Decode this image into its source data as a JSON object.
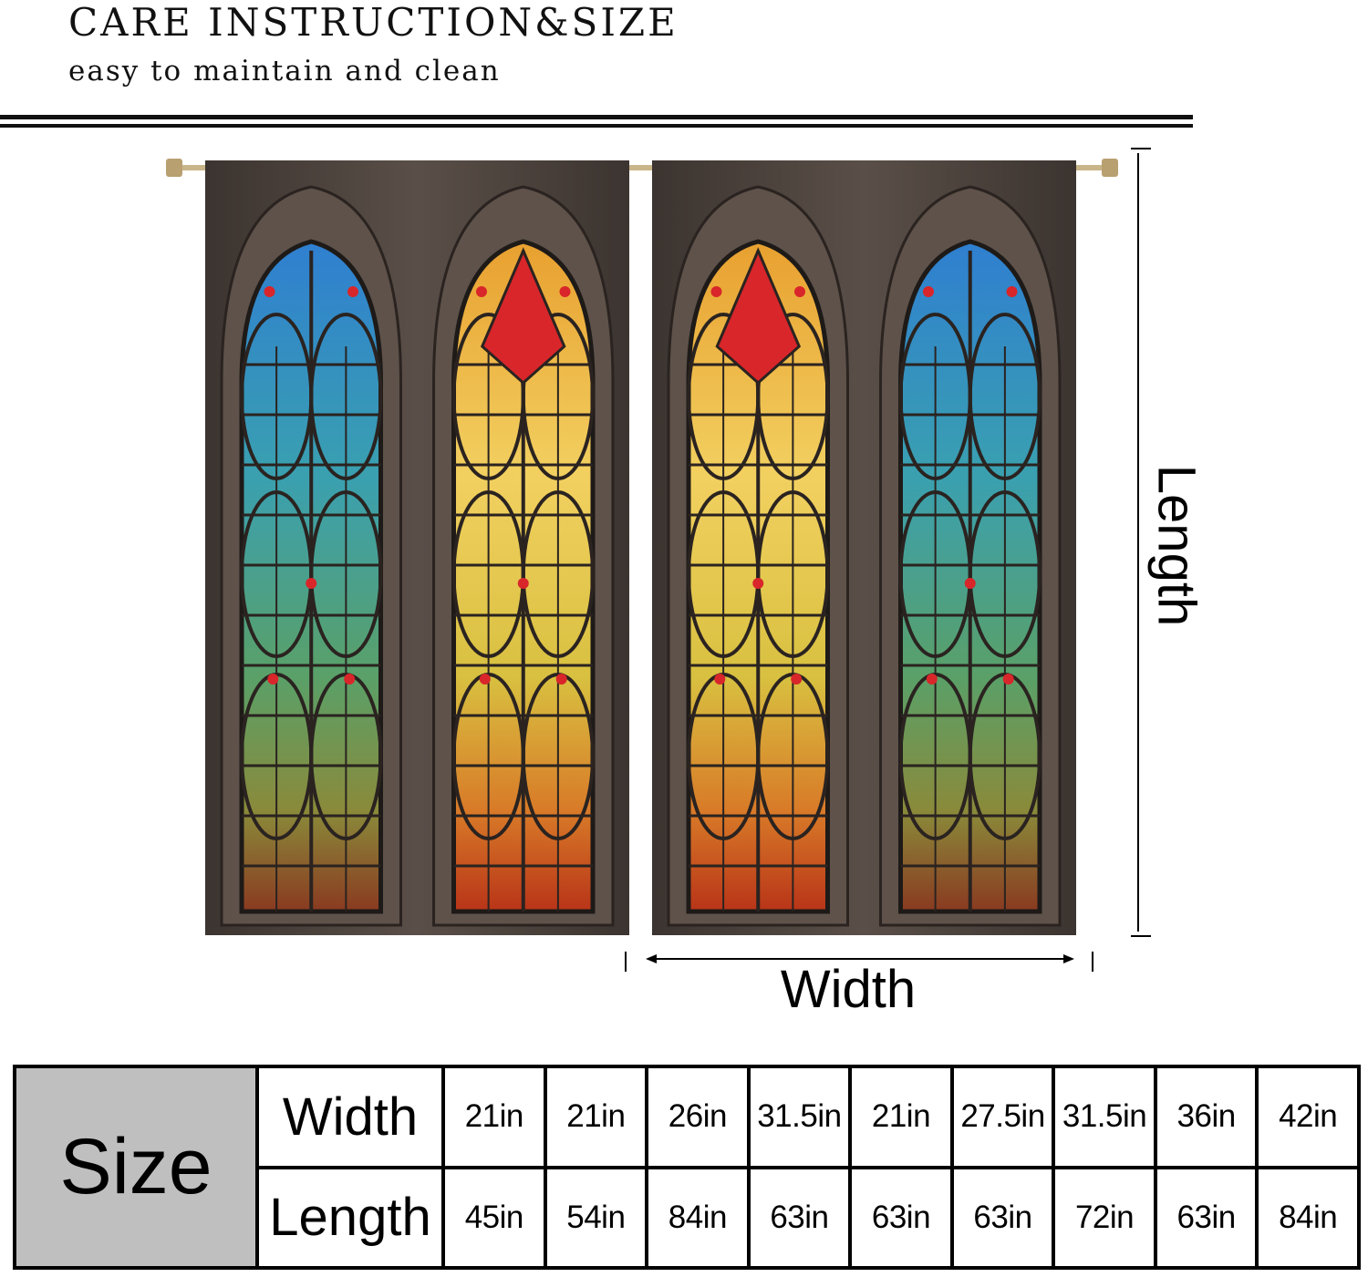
{
  "header": {
    "title": "CARE INSTRUCTION&SIZE",
    "subtitle": "easy to maintain and clean"
  },
  "diagram": {
    "length_label": "Length",
    "width_label": "Width",
    "panel_palettes": [
      [
        "cool",
        "warm"
      ],
      [
        "warm",
        "cool"
      ]
    ],
    "colors": {
      "frame": "#4a403b",
      "cool_top": "#2f7fd0",
      "cool_bottom": "#3f8a5a",
      "warm_top": "#f0c040",
      "warm_bottom": "#c8401c",
      "accent_red": "#d8262a"
    }
  },
  "size_table": {
    "size_label": "Size",
    "width_label": "Width",
    "length_label": "Length",
    "widths": [
      "21in",
      "21in",
      "26in",
      "31.5in",
      "21in",
      "27.5in",
      "31.5in",
      "36in",
      "42in"
    ],
    "lengths": [
      "45in",
      "54in",
      "84in",
      "63in",
      "63in",
      "63in",
      "72in",
      "63in",
      "84in"
    ]
  }
}
